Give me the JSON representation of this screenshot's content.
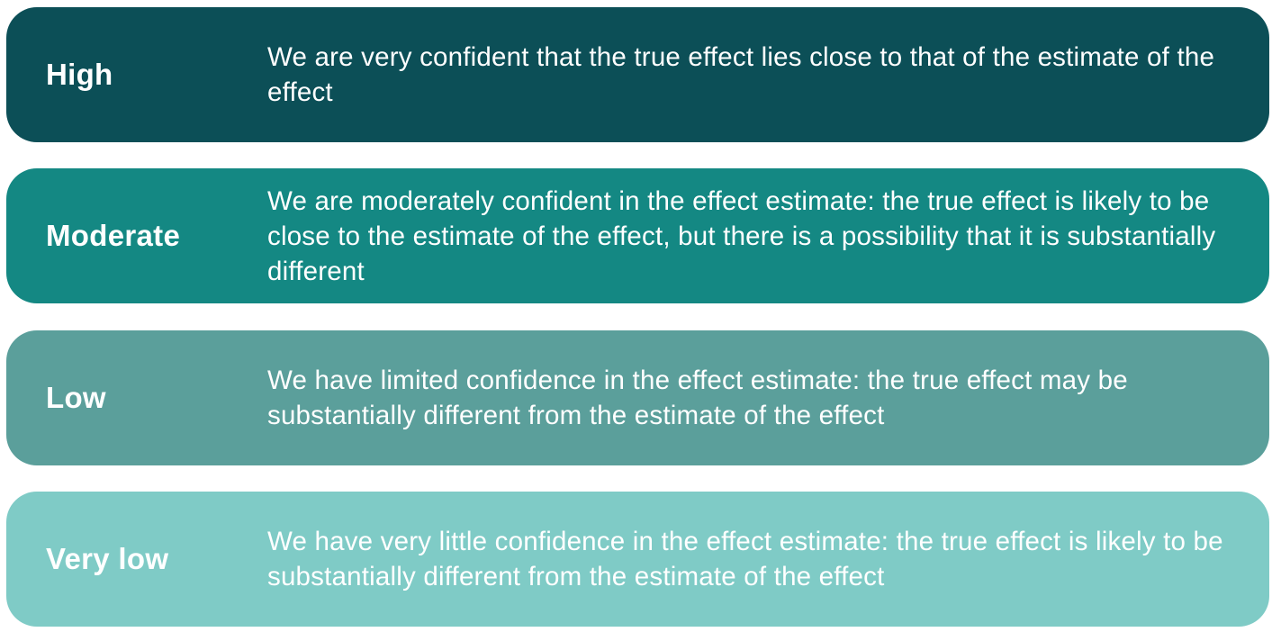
{
  "levels": [
    {
      "label": "High",
      "description": "We are very confident that the true effect lies close to that of the estimate of the effect",
      "color": "#0c4f57"
    },
    {
      "label": "Moderate",
      "description": "We are moderately confident in the effect estimate: the true effect is likely to be close to the estimate of the effect, but there is a possibility that it is substantially different",
      "color": "#148883"
    },
    {
      "label": "Low",
      "description": "We have limited confidence in the effect estimate: the true effect may be substantially different from the estimate of the effect",
      "color": "#5b9f9b"
    },
    {
      "label": "Very low",
      "description": "We have very little confidence in the effect estimate: the true effect is likely to be substantially different from the estimate of the effect",
      "color": "#7fcbc6"
    }
  ]
}
